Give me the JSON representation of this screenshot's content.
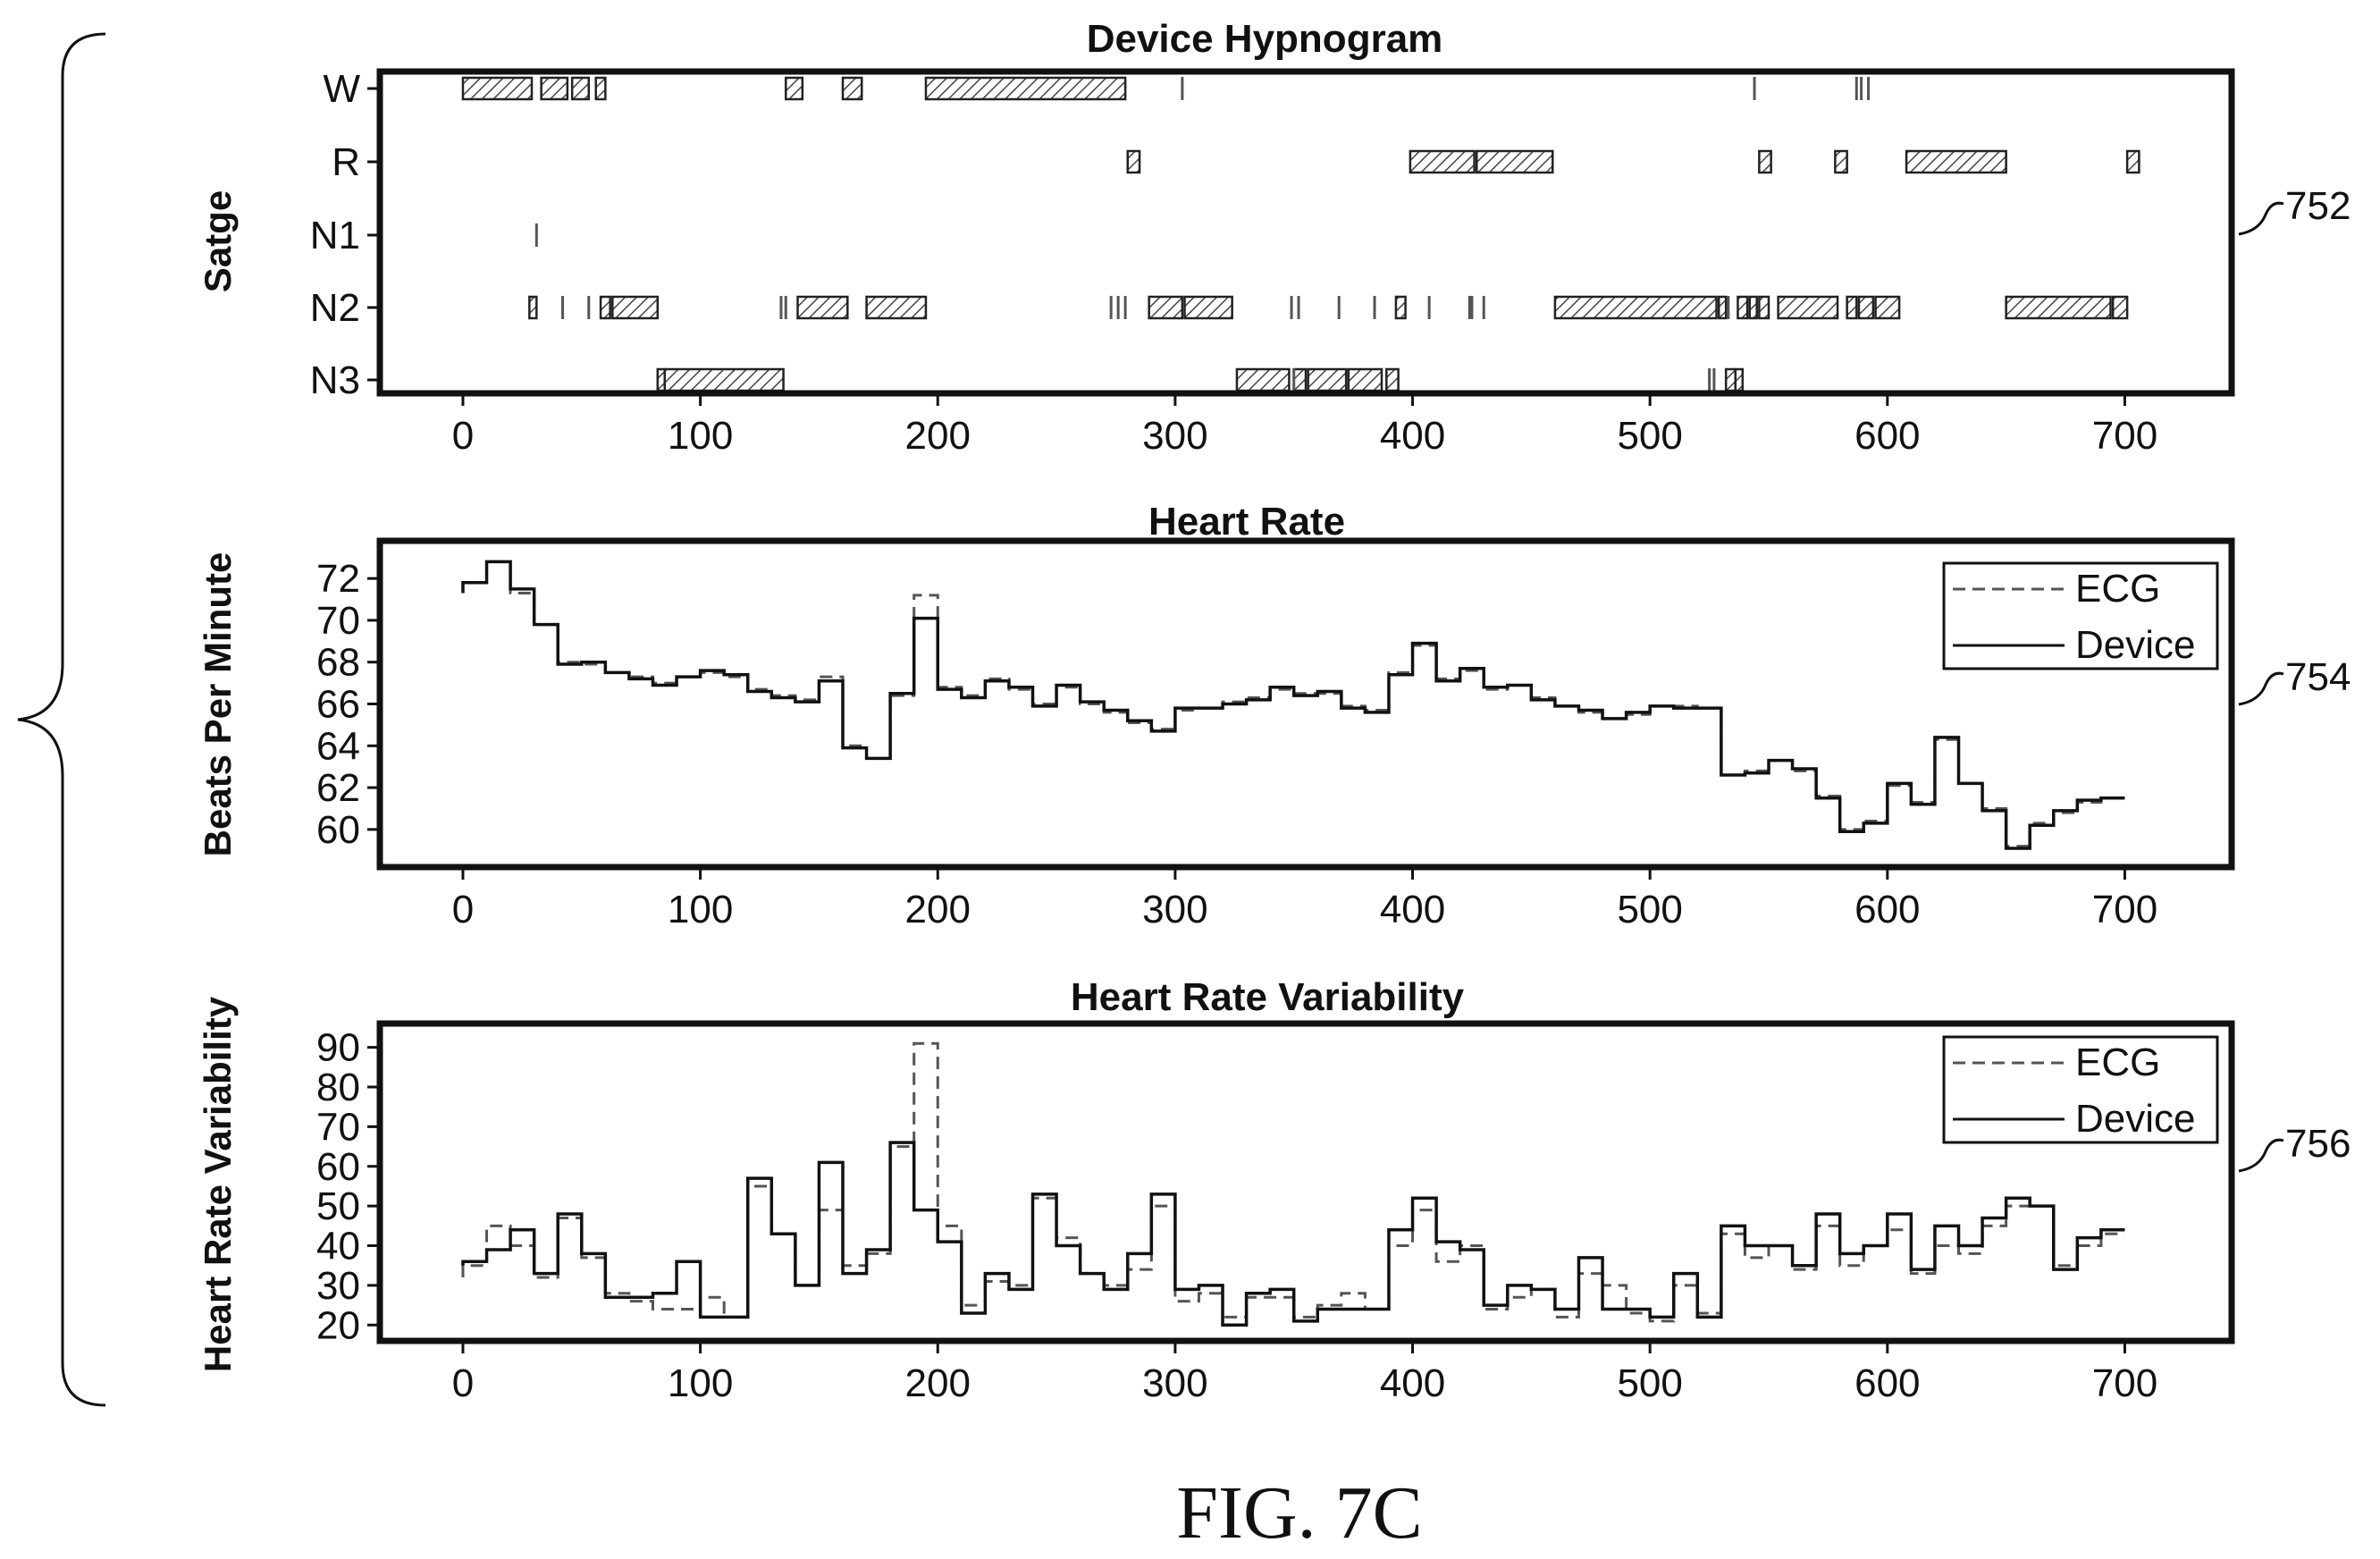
{
  "figure": {
    "caption": "FIG. 7C",
    "brace": "left-curly-brace",
    "colors": {
      "ink": "#111111",
      "ecg": "#555555",
      "device": "#111111",
      "hatch": "#444444"
    }
  },
  "chart_data": [
    {
      "id": "hypnogram",
      "type": "timeline",
      "ref_label": "752",
      "title": "Device Hypnogram",
      "ylabel": "Satge",
      "xlabel": "",
      "xlim": [
        -35,
        745
      ],
      "x_ticks": [
        "0",
        "100",
        "200",
        "300",
        "400",
        "500",
        "600",
        "700"
      ],
      "x_tick_values": [
        0,
        100,
        200,
        300,
        400,
        500,
        600,
        700
      ],
      "stages": [
        "W",
        "R",
        "N1",
        "N2",
        "N3"
      ],
      "segments": {
        "W": [
          [
            0,
            29
          ],
          [
            33,
            44
          ],
          [
            46,
            53
          ],
          [
            56,
            60
          ],
          [
            136,
            143
          ],
          [
            160,
            168
          ],
          [
            195,
            279
          ]
        ],
        "R": [
          [
            280,
            285
          ],
          [
            399,
            426
          ],
          [
            427,
            459
          ],
          [
            546,
            551
          ],
          [
            578,
            583
          ],
          [
            608,
            650
          ],
          [
            701,
            706
          ]
        ],
        "N1": [],
        "N2": [
          [
            28,
            31
          ],
          [
            58,
            62
          ],
          [
            63,
            82
          ],
          [
            141,
            162
          ],
          [
            170,
            195
          ],
          [
            289,
            303
          ],
          [
            304,
            324
          ],
          [
            393,
            397
          ],
          [
            460,
            528
          ],
          [
            529,
            532
          ],
          [
            537,
            541
          ],
          [
            542,
            545
          ],
          [
            546,
            550
          ],
          [
            554,
            579
          ],
          [
            583,
            587
          ],
          [
            588,
            594
          ],
          [
            595,
            605
          ],
          [
            650,
            694
          ],
          [
            695,
            701
          ]
        ],
        "N3": [
          [
            82,
            85
          ],
          [
            85,
            135
          ],
          [
            326,
            348
          ],
          [
            350,
            355
          ],
          [
            356,
            372
          ],
          [
            373,
            387
          ],
          [
            389,
            394
          ],
          [
            532,
            536
          ],
          [
            536,
            539
          ]
        ]
      },
      "ticks": {
        "W": [
          303,
          544,
          587,
          589,
          592
        ],
        "R": [],
        "N1": [
          31
        ],
        "N2": [
          42,
          53,
          134,
          136,
          273,
          276,
          279,
          349,
          352,
          369,
          384,
          407,
          424,
          425,
          430,
          533
        ],
        "N3": [
          350,
          525,
          527
        ]
      }
    },
    {
      "id": "heart-rate",
      "type": "line",
      "ref_label": "754",
      "title": "Heart Rate",
      "ylabel": "Beats Per Minute",
      "xlabel": "",
      "xlim": [
        -35,
        745
      ],
      "ylim": [
        58.2,
        73.8
      ],
      "x_ticks": [
        "0",
        "100",
        "200",
        "300",
        "400",
        "500",
        "600",
        "700"
      ],
      "x_tick_values": [
        0,
        100,
        200,
        300,
        400,
        500,
        600,
        700
      ],
      "y_ticks": [
        "60",
        "62",
        "64",
        "66",
        "68",
        "70",
        "72"
      ],
      "y_tick_values": [
        60,
        62,
        64,
        66,
        68,
        70,
        72
      ],
      "legend": {
        "position": "top-right",
        "entries": [
          "ECG",
          "Device"
        ]
      },
      "series": [
        {
          "name": "ECG",
          "style": "dashed",
          "x": [
            0,
            10,
            20,
            30,
            40,
            50,
            60,
            70,
            80,
            90,
            100,
            110,
            120,
            130,
            140,
            150,
            160,
            170,
            180,
            190,
            200,
            210,
            220,
            230,
            240,
            250,
            260,
            270,
            280,
            290,
            300,
            310,
            320,
            330,
            340,
            350,
            360,
            370,
            380,
            390,
            400,
            410,
            420,
            430,
            440,
            450,
            460,
            470,
            480,
            490,
            500,
            510,
            520,
            530,
            540,
            550,
            560,
            570,
            580,
            590,
            600,
            610,
            620,
            630,
            640,
            650,
            660,
            670,
            680,
            690,
            700
          ],
          "y": [
            71.3,
            71.8,
            72.8,
            71.3,
            69.8,
            68.0,
            67.9,
            67.5,
            67.3,
            67.0,
            67.3,
            67.5,
            67.3,
            66.7,
            66.4,
            66.2,
            67.3,
            64.0,
            63.4,
            66.4,
            71.2,
            66.8,
            66.4,
            67.2,
            66.7,
            66.0,
            66.8,
            66.0,
            65.6,
            65.1,
            64.8,
            65.7,
            65.8,
            66.1,
            66.3,
            66.7,
            66.5,
            66.5,
            65.9,
            65.7,
            67.5,
            68.8,
            67.2,
            67.6,
            66.7,
            66.9,
            66.3,
            65.9,
            65.6,
            65.3,
            65.5,
            65.9,
            65.9,
            65.8,
            62.6,
            62.8,
            63.3,
            62.8,
            61.6,
            60.0,
            60.4,
            62.1,
            61.3,
            64.3,
            62.2,
            61.0,
            59.2,
            60.3,
            60.8,
            61.3,
            61.5
          ]
        },
        {
          "name": "Device",
          "style": "solid",
          "x": [
            0,
            10,
            20,
            30,
            40,
            50,
            60,
            70,
            80,
            90,
            100,
            110,
            120,
            130,
            140,
            150,
            160,
            170,
            180,
            190,
            200,
            210,
            220,
            230,
            240,
            250,
            260,
            270,
            280,
            290,
            300,
            310,
            320,
            330,
            340,
            350,
            360,
            370,
            380,
            390,
            400,
            410,
            420,
            430,
            440,
            450,
            460,
            470,
            480,
            490,
            500,
            510,
            520,
            530,
            540,
            550,
            560,
            570,
            580,
            590,
            600,
            610,
            620,
            630,
            640,
            650,
            660,
            670,
            680,
            690,
            700
          ],
          "y": [
            71.3,
            71.8,
            72.8,
            71.5,
            69.8,
            67.9,
            68.0,
            67.5,
            67.2,
            66.9,
            67.3,
            67.6,
            67.4,
            66.6,
            66.3,
            66.1,
            67.1,
            63.9,
            63.4,
            66.5,
            70.1,
            66.7,
            66.3,
            67.1,
            66.8,
            65.9,
            66.9,
            66.1,
            65.7,
            65.2,
            64.7,
            65.8,
            65.8,
            66.0,
            66.2,
            66.8,
            66.4,
            66.6,
            65.8,
            65.6,
            67.4,
            68.9,
            67.1,
            67.7,
            66.8,
            66.9,
            66.2,
            65.9,
            65.7,
            65.3,
            65.6,
            65.9,
            65.8,
            65.8,
            62.6,
            62.7,
            63.3,
            62.9,
            61.5,
            59.9,
            60.3,
            62.2,
            61.2,
            64.4,
            62.2,
            60.9,
            59.1,
            60.2,
            60.9,
            61.4,
            61.5
          ]
        }
      ]
    },
    {
      "id": "hrv",
      "type": "line",
      "ref_label": "756",
      "title": "Heart Rate Variability",
      "ylabel": "Heart Rate Variability",
      "xlabel": "",
      "xlim": [
        -35,
        745
      ],
      "ylim": [
        16,
        96
      ],
      "x_ticks": [
        "0",
        "100",
        "200",
        "300",
        "400",
        "500",
        "600",
        "700"
      ],
      "x_tick_values": [
        0,
        100,
        200,
        300,
        400,
        500,
        600,
        700
      ],
      "y_ticks": [
        "20",
        "30",
        "40",
        "50",
        "60",
        "70",
        "80",
        "90"
      ],
      "y_tick_values": [
        20,
        30,
        40,
        50,
        60,
        70,
        80,
        90
      ],
      "legend": {
        "position": "top-right",
        "entries": [
          "ECG",
          "Device"
        ]
      },
      "series": [
        {
          "name": "ECG",
          "style": "dashed",
          "x": [
            0,
            10,
            20,
            30,
            40,
            50,
            60,
            70,
            80,
            90,
            100,
            110,
            120,
            130,
            140,
            150,
            160,
            170,
            180,
            190,
            200,
            210,
            220,
            230,
            240,
            250,
            260,
            270,
            280,
            290,
            300,
            310,
            320,
            330,
            340,
            350,
            360,
            370,
            380,
            390,
            400,
            410,
            420,
            430,
            440,
            450,
            460,
            470,
            480,
            490,
            500,
            510,
            520,
            530,
            540,
            550,
            560,
            570,
            580,
            590,
            600,
            610,
            620,
            630,
            640,
            650,
            660,
            670,
            680,
            690,
            700
          ],
          "y": [
            32,
            35,
            45,
            40,
            32,
            47,
            37,
            28,
            26,
            24,
            24,
            27,
            22,
            55,
            43,
            30,
            49,
            35,
            38,
            65,
            91,
            45,
            25,
            31,
            30,
            52,
            42,
            33,
            30,
            34,
            50,
            26,
            28,
            22,
            27,
            27,
            22,
            25,
            28,
            24,
            40,
            49,
            36,
            40,
            24,
            27,
            29,
            22,
            33,
            30,
            23,
            21,
            30,
            23,
            43,
            37,
            40,
            34,
            45,
            35,
            40,
            44,
            33,
            40,
            38,
            45,
            50,
            50,
            35,
            40,
            43
          ]
        },
        {
          "name": "Device",
          "style": "solid",
          "x": [
            0,
            10,
            20,
            30,
            40,
            50,
            60,
            70,
            80,
            90,
            100,
            110,
            120,
            130,
            140,
            150,
            160,
            170,
            180,
            190,
            200,
            210,
            220,
            230,
            240,
            250,
            260,
            270,
            280,
            290,
            300,
            310,
            320,
            330,
            340,
            350,
            360,
            370,
            380,
            390,
            400,
            410,
            420,
            430,
            440,
            450,
            460,
            470,
            480,
            490,
            500,
            510,
            520,
            530,
            540,
            550,
            560,
            570,
            580,
            590,
            600,
            610,
            620,
            630,
            640,
            650,
            660,
            670,
            680,
            690,
            700
          ],
          "y": [
            35,
            36,
            39,
            44,
            33,
            48,
            38,
            27,
            27,
            28,
            36,
            22,
            22,
            57,
            43,
            30,
            61,
            33,
            39,
            66,
            49,
            41,
            23,
            33,
            29,
            53,
            40,
            33,
            29,
            38,
            53,
            29,
            30,
            20,
            28,
            29,
            21,
            24,
            24,
            24,
            44,
            52,
            41,
            39,
            25,
            30,
            29,
            24,
            37,
            24,
            24,
            22,
            33,
            22,
            45,
            40,
            40,
            35,
            48,
            38,
            40,
            48,
            34,
            45,
            40,
            47,
            52,
            50,
            34,
            42,
            44
          ]
        }
      ]
    }
  ]
}
